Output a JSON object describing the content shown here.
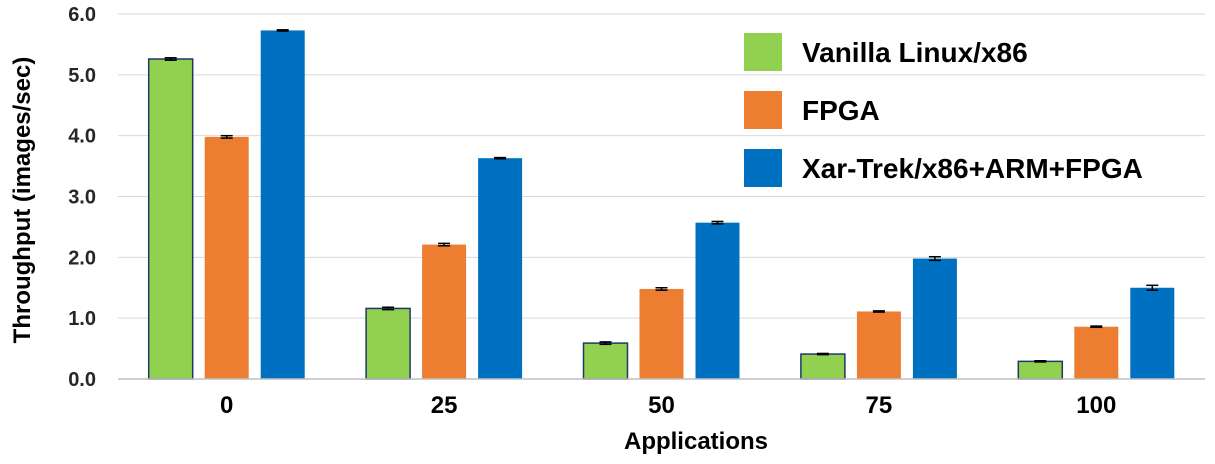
{
  "chart_data": {
    "type": "bar",
    "xlabel": "Applications",
    "ylabel": "Throughput (images/sec)",
    "ylim": [
      0,
      6
    ],
    "yticks": [
      "0.0",
      "1.0",
      "2.0",
      "3.0",
      "4.0",
      "5.0",
      "6.0"
    ],
    "categories": [
      "0",
      "25",
      "50",
      "75",
      "100"
    ],
    "grid": true,
    "legend_position": "top-right",
    "series": [
      {
        "name": "Vanilla Linux/x86",
        "color": "#92d050",
        "values": [
          5.26,
          1.16,
          0.59,
          0.41,
          0.29
        ],
        "errors": [
          0.02,
          0.02,
          0.02,
          0.01,
          0.01
        ]
      },
      {
        "name": "FPGA",
        "color": "#ed7d31",
        "values": [
          3.98,
          2.21,
          1.48,
          1.11,
          0.86
        ],
        "errors": [
          0.02,
          0.02,
          0.02,
          0.01,
          0.01
        ]
      },
      {
        "name": "Xar-Trek/x86+ARM+FPGA",
        "color": "#0070c0",
        "values": [
          5.73,
          3.63,
          2.57,
          1.98,
          1.5
        ],
        "errors": [
          0.01,
          0.01,
          0.02,
          0.03,
          0.04
        ]
      }
    ]
  }
}
